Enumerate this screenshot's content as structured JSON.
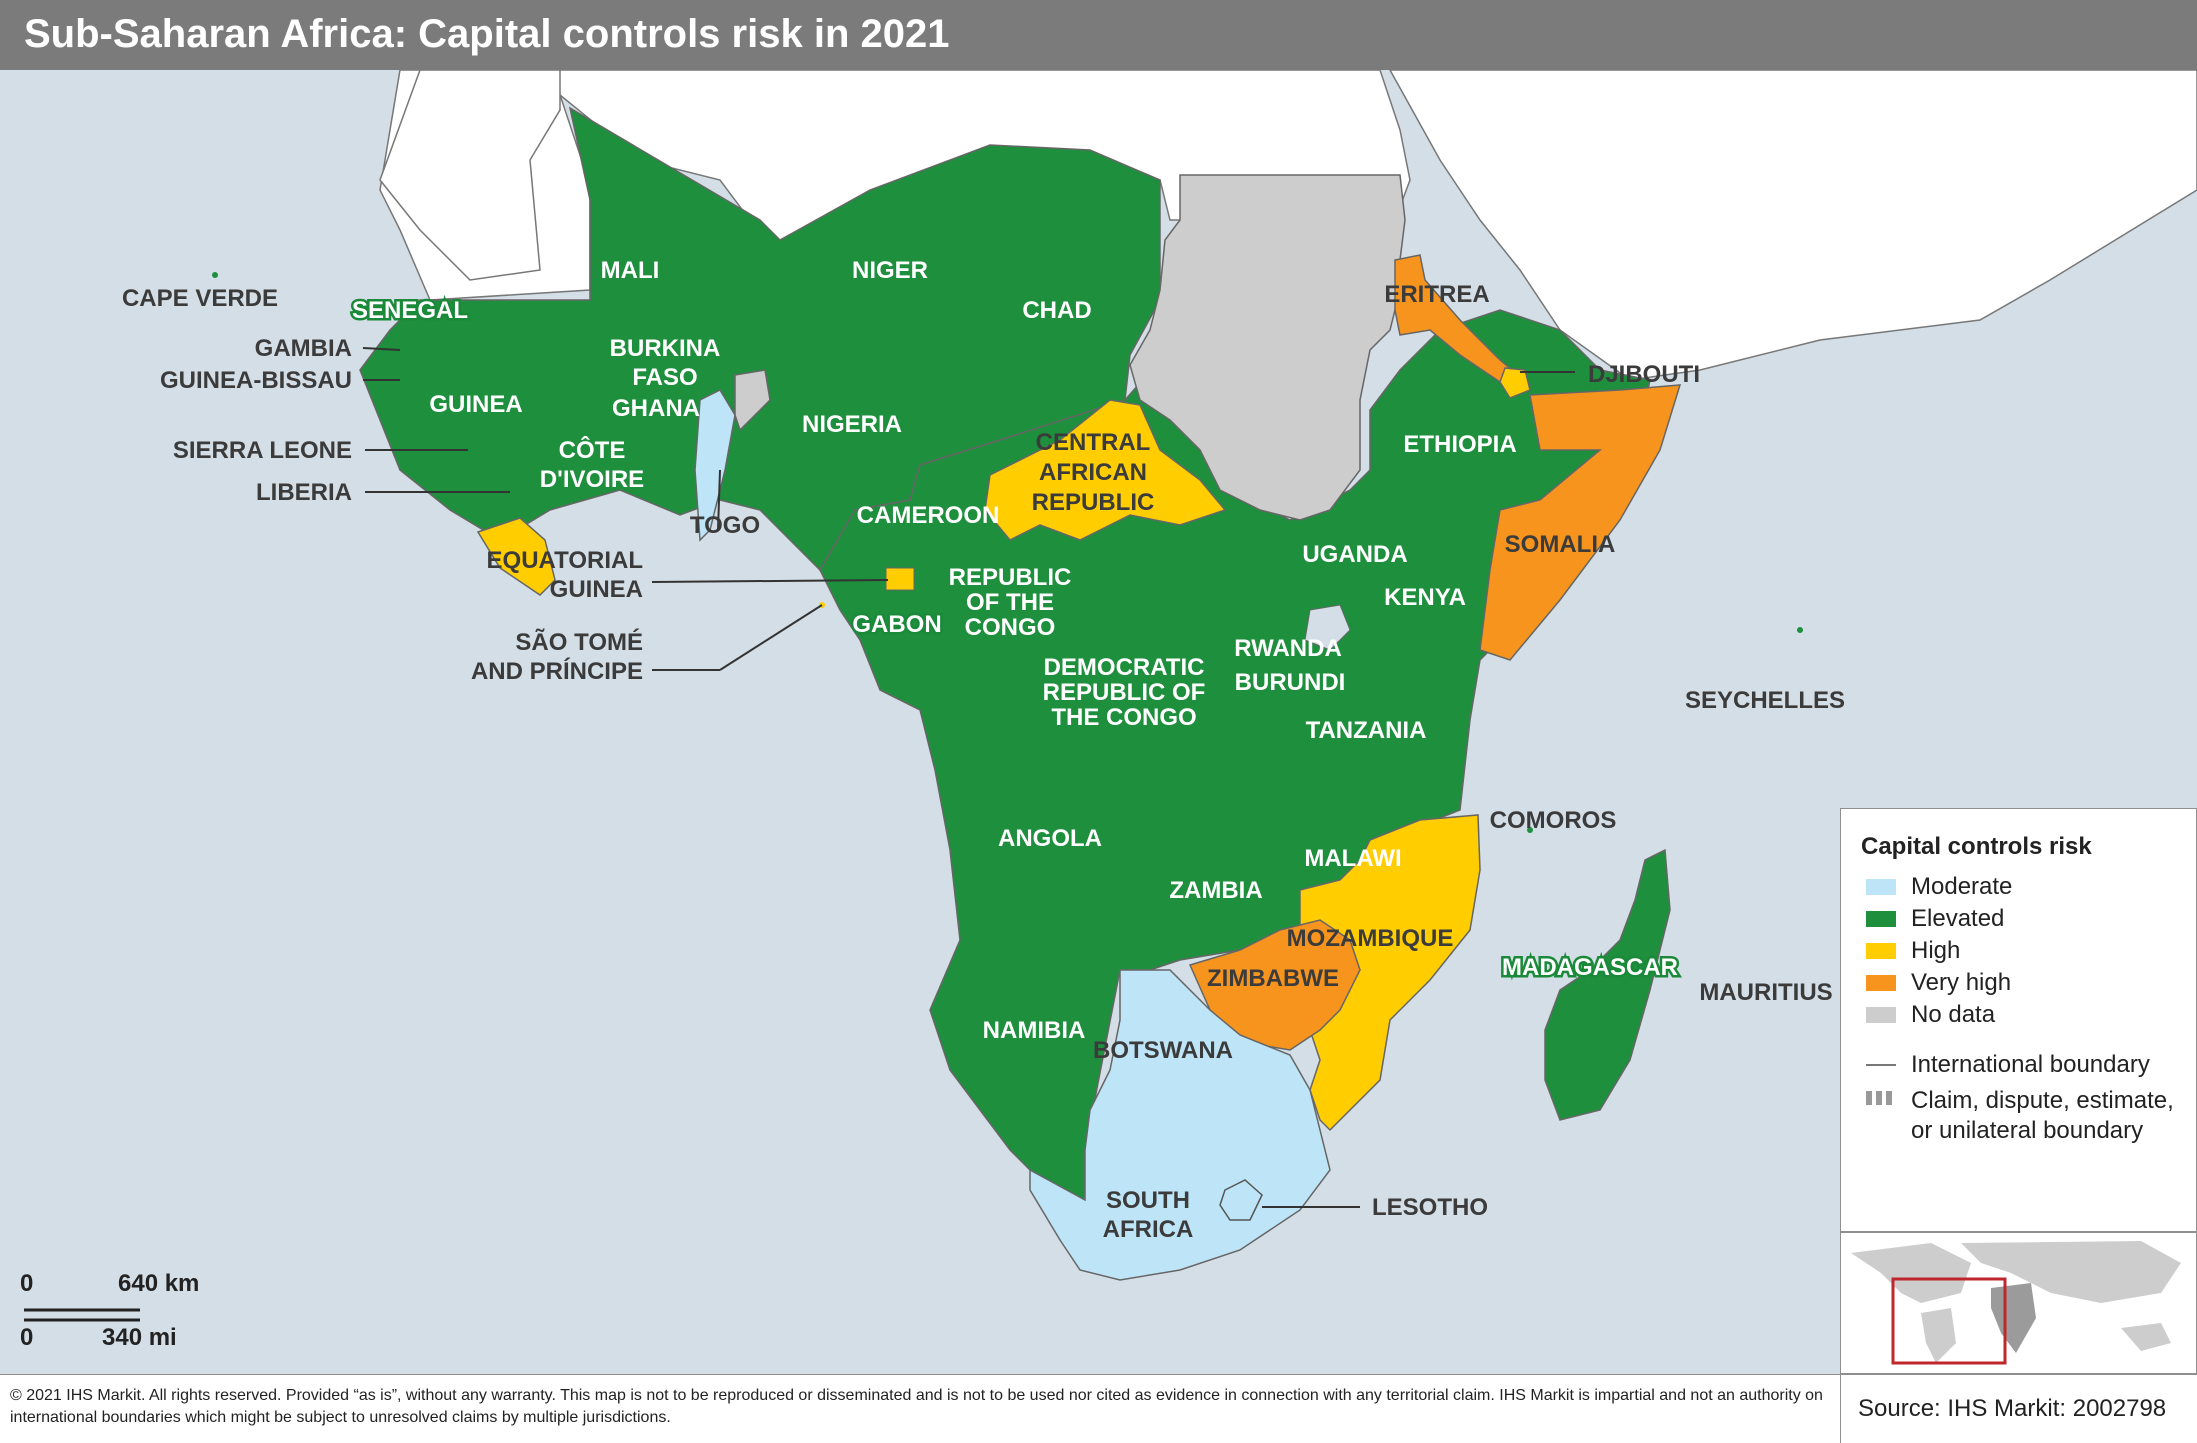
{
  "title": "Sub-Saharan Africa: Capital controls risk in 2021",
  "colors": {
    "moderate": "#bde4f7",
    "elevated": "#1e8f3d",
    "high": "#ffcd00",
    "very_high": "#f7941d",
    "no_data": "#cdcdcd",
    "ocean": "#d3dee6",
    "other_land": "#ffffff"
  },
  "countries": {
    "mali": "MALI",
    "niger": "NIGER",
    "chad": "CHAD",
    "cape_verde": "CAPE VERDE",
    "senegal": "SENEGAL",
    "gambia": "GAMBIA",
    "guinea_bissau": "GUINEA-BISSAU",
    "guinea": "GUINEA",
    "sierra_leone": "SIERRA LEONE",
    "liberia": "LIBERIA",
    "burkina_l1": "BURKINA",
    "burkina_l2": "FASO",
    "ghana": "GHANA",
    "cote_l1": "CÔTE",
    "cote_l2": "D'IVOIRE",
    "togo": "TOGO",
    "nigeria": "NIGERIA",
    "car_l1": "CENTRAL",
    "car_l2": "AFRICAN",
    "car_l3": "REPUBLIC",
    "cameroon": "CAMEROON",
    "eq_l1": "EQUATORIAL",
    "eq_l2": "GUINEA",
    "stp_l1": "SÃO TOMÉ",
    "stp_l2": "AND PRÍNCIPE",
    "gabon": "GABON",
    "roc_l1": "REPUBLIC",
    "roc_l2": "OF THE",
    "roc_l3": "CONGO",
    "drc_l1": "DEMOCRATIC",
    "drc_l2": "REPUBLIC OF",
    "drc_l3": "THE CONGO",
    "eritrea": "ERITREA",
    "djibouti": "DJIBOUTI",
    "ethiopia": "ETHIOPIA",
    "somalia": "SOMALIA",
    "uganda": "UGANDA",
    "kenya": "KENYA",
    "rwanda": "RWANDA",
    "burundi": "BURUNDI",
    "tanzania": "TANZANIA",
    "seychelles": "SEYCHELLES",
    "comoros": "COMOROS",
    "angola": "ANGOLA",
    "zambia": "ZAMBIA",
    "malawi": "MALAWI",
    "mozambique": "MOZAMBIQUE",
    "madagascar": "MADAGASCAR",
    "mauritius": "MAURITIUS",
    "zimbabwe": "ZIMBABWE",
    "namibia": "NAMIBIA",
    "botswana": "BOTSWANA",
    "sa_l1": "SOUTH",
    "sa_l2": "AFRICA",
    "lesotho": "LESOTHO"
  },
  "scale": {
    "km_zero": "0",
    "km_value": "640 km",
    "mi_zero": "0",
    "mi_value": "340 mi"
  },
  "legend": {
    "title": "Capital controls risk",
    "items": [
      "Moderate",
      "Elevated",
      "High",
      "Very high",
      "No data"
    ],
    "boundary": "International boundary",
    "claim_l1": "Claim, dispute, estimate,",
    "claim_l2": "or unilateral boundary"
  },
  "footer": {
    "disclaimer": "© 2021 IHS Markit. All rights reserved. Provided “as is”, without any warranty. This map is not to be reproduced or disseminated and is not to be used nor cited as evidence in connection with any territorial claim. IHS Markit is impartial and not an authority on international boundaries which might be subject to unresolved claims by multiple jurisdictions.",
    "source": "Source: IHS Markit: 2002798"
  }
}
